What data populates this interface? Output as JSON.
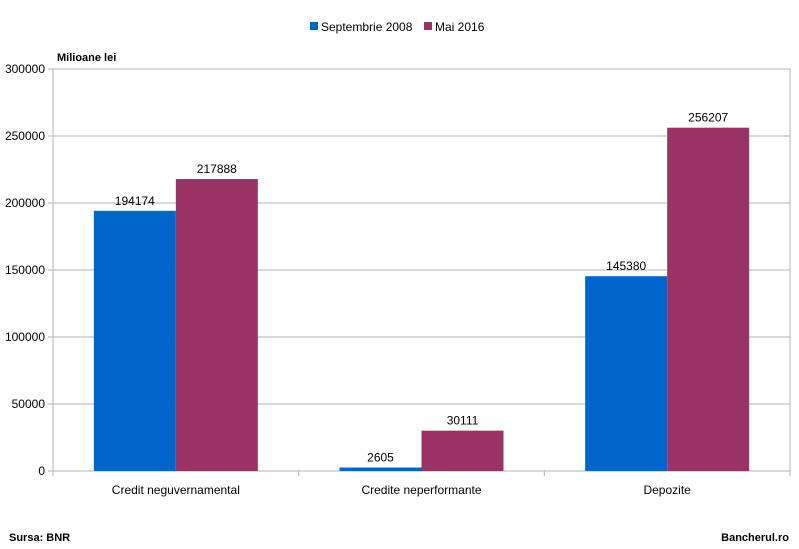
{
  "chart_data": {
    "type": "bar",
    "categories": [
      "Credit neguvernamental",
      "Credite neperformante",
      "Depozite"
    ],
    "series": [
      {
        "name": "Septembrie 2008",
        "values": [
          194174,
          2605,
          145380
        ],
        "color": "#0066CC"
      },
      {
        "name": "Mai 2016",
        "values": [
          217888,
          30111,
          256207
        ],
        "color": "#993366"
      }
    ],
    "ylabel": "Milioane lei",
    "ylim": [
      0,
      300000
    ],
    "yticks": [
      0,
      50000,
      100000,
      150000,
      200000,
      250000,
      300000
    ],
    "grid": true,
    "legend": "top-center"
  },
  "footer": {
    "source": "Sursa: BNR",
    "brand": "Bancherul.ro"
  }
}
